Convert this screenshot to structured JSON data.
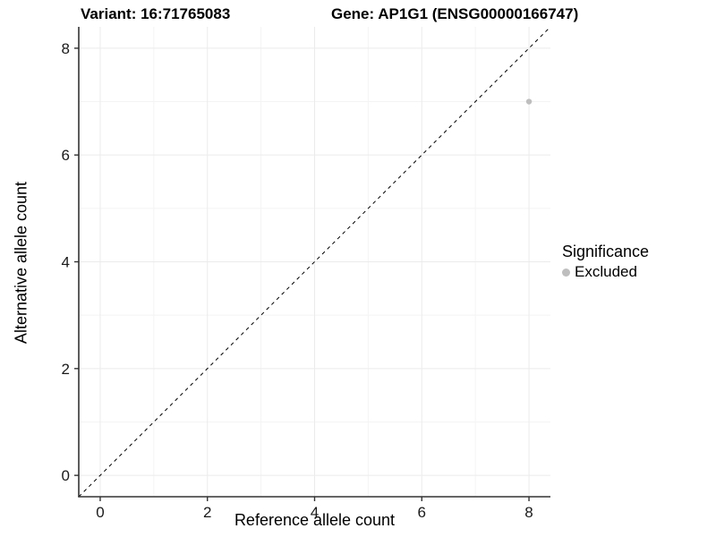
{
  "titles": {
    "variant": "Variant: 16:71765083",
    "gene": "Gene: AP1G1 (ENSG00000166747)"
  },
  "chart_data": {
    "type": "scatter",
    "xlabel": "Reference allele count",
    "ylabel": "Alternative allele count",
    "xlim": [
      -0.4,
      8.4
    ],
    "ylim": [
      -0.4,
      8.4
    ],
    "x_ticks": [
      0,
      2,
      4,
      6,
      8
    ],
    "y_ticks": [
      0,
      2,
      4,
      6,
      8
    ],
    "x_minor_gridlines": [
      1,
      3,
      5,
      7
    ],
    "y_minor_gridlines": [
      1,
      3,
      5,
      7
    ],
    "grid": true,
    "points": [
      {
        "x": 8,
        "y": 7,
        "significance": "Excluded"
      }
    ],
    "identity_line": {
      "slope": 1,
      "intercept": 0,
      "style": "dashed"
    }
  },
  "legend": {
    "title": "Significance",
    "items": [
      {
        "label": "Excluded",
        "color": "#bebebe"
      }
    ]
  },
  "colors": {
    "point": "#bebebe",
    "grid_major": "#ebebeb",
    "grid_minor": "#f4f4f4",
    "axis_line": "#333333",
    "tick_mark": "#333333",
    "tick_label": "#1a1a1a",
    "identity_line": "#000000",
    "background": "#ffffff"
  }
}
